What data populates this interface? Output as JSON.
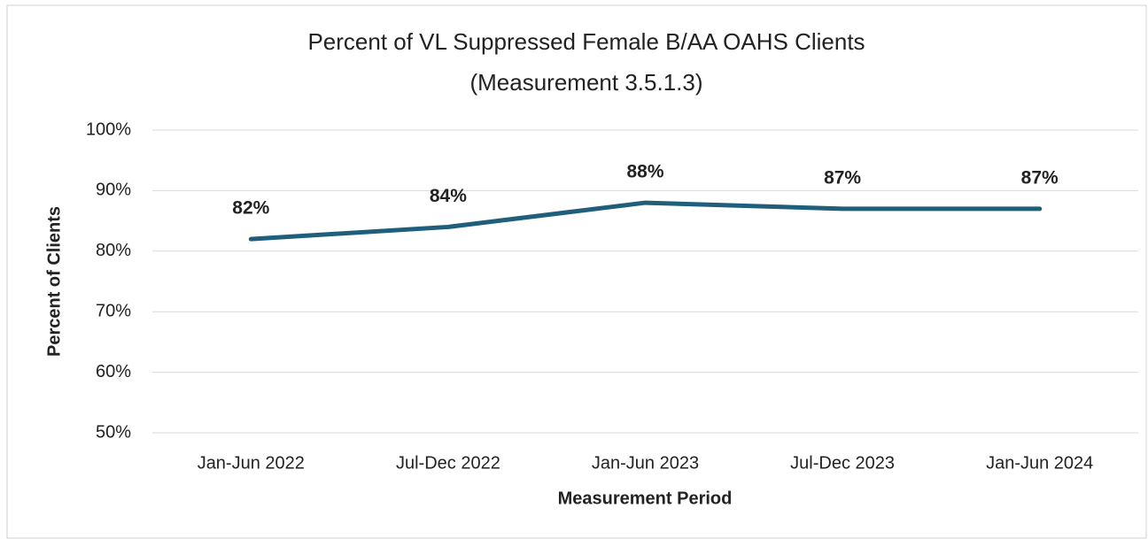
{
  "chart_data": {
    "type": "line",
    "title": "Percent of VL Suppressed Female B/AA OAHS Clients",
    "subtitle": "(Measurement 3.5.1.3)",
    "x_label": "Measurement Period",
    "y_label": "Percent of Clients",
    "categories": [
      "Jan-Jun 2022",
      "Jul-Dec 2022",
      "Jan-Jun 2023",
      "Jul-Dec 2023",
      "Jan-Jun 2024"
    ],
    "series": [
      {
        "name": "Percent of Clients",
        "color": "#1f5f7b",
        "values": [
          82,
          84,
          88,
          87,
          87
        ],
        "value_labels": [
          "82%",
          "84%",
          "88%",
          "87%",
          "87%"
        ]
      }
    ],
    "ylim": [
      50,
      100
    ],
    "yticks": [
      {
        "value": 50,
        "label": "50%"
      },
      {
        "value": 60,
        "label": "60%"
      },
      {
        "value": 70,
        "label": "70%"
      },
      {
        "value": 80,
        "label": "80%"
      },
      {
        "value": 90,
        "label": "90%"
      },
      {
        "value": 100,
        "label": "100%"
      }
    ],
    "grid": true
  }
}
